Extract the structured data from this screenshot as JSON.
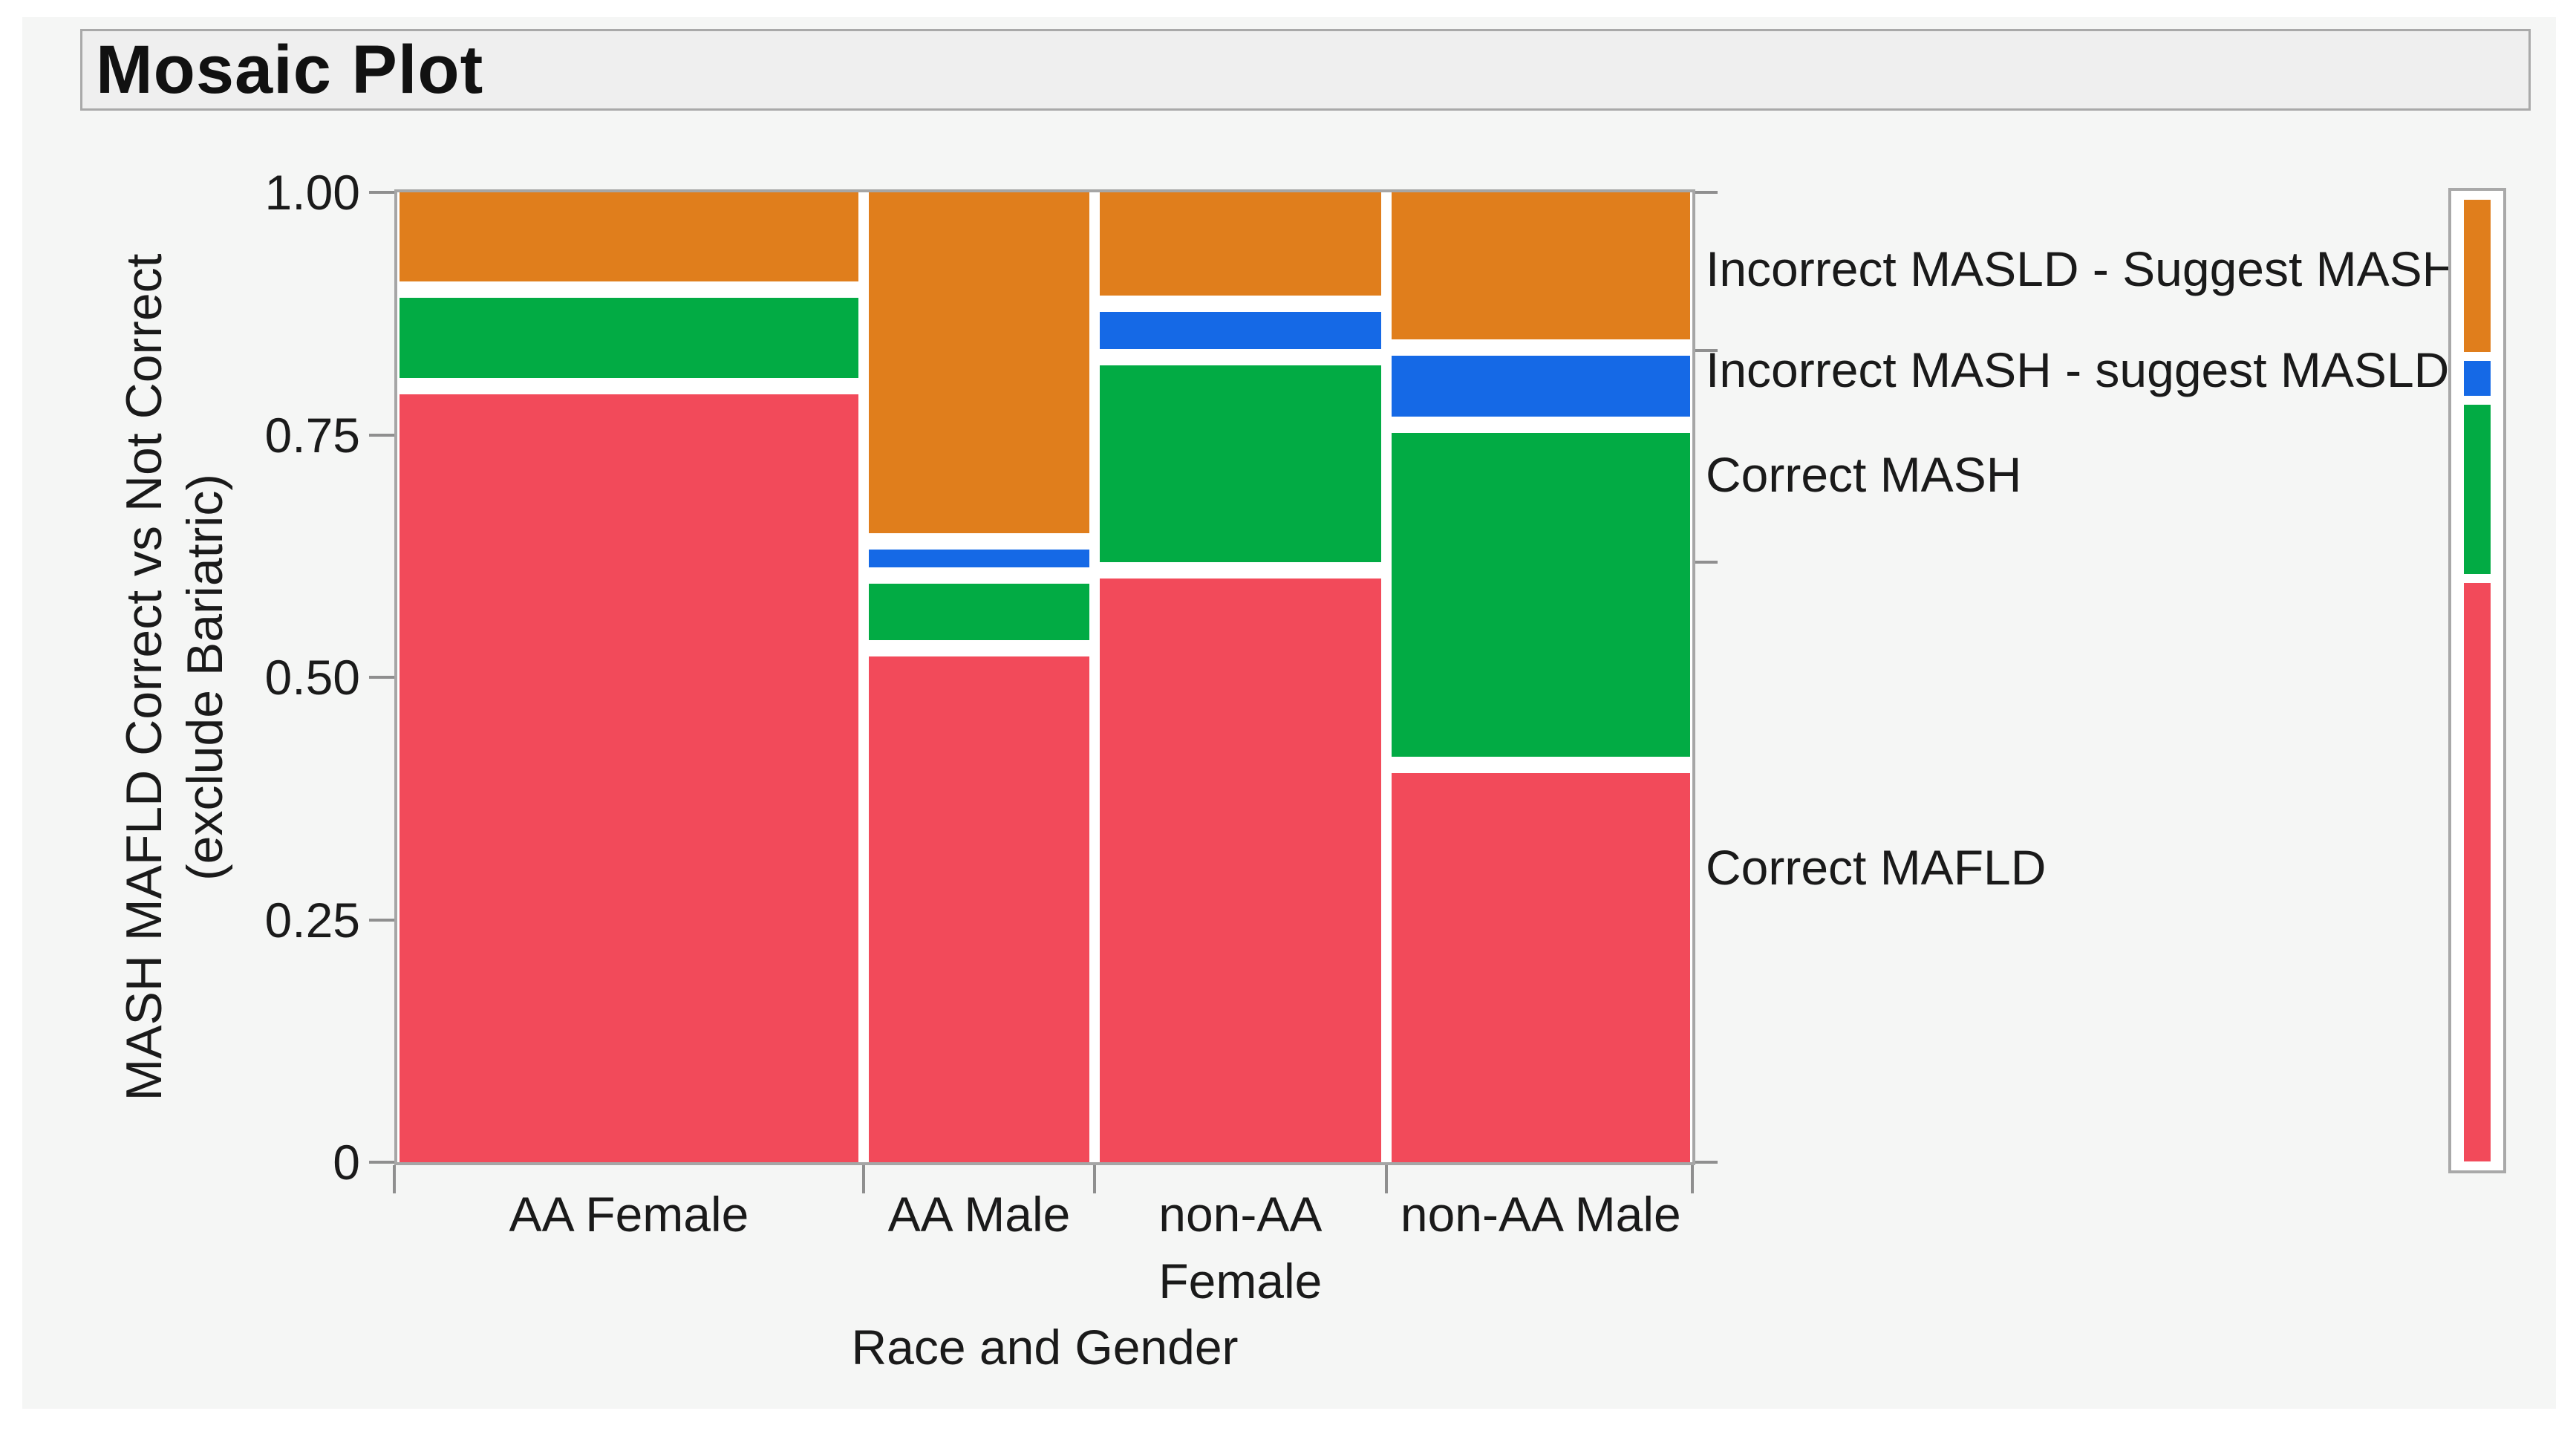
{
  "panel": {
    "title": "Mosaic Plot"
  },
  "y_axis": {
    "title_line1": "MASH MAFLD Correct vs Not Correct",
    "title_line2": "(exclude Bariatric)",
    "ticks": [
      {
        "label": "1.00",
        "value": 1.0
      },
      {
        "label": "0.75",
        "value": 0.75
      },
      {
        "label": "0.50",
        "value": 0.5
      },
      {
        "label": "0.25",
        "value": 0.25
      },
      {
        "label": "0",
        "value": 0.0
      }
    ]
  },
  "x_axis": {
    "title": "Race and Gender"
  },
  "legend": {
    "items": [
      {
        "text": "Incorrect MASLD - Suggest MASH",
        "y_value": 0.921
      },
      {
        "text": "Incorrect MASH - suggest MASLD",
        "y_value": 0.817
      },
      {
        "text": "Correct MASH",
        "y_value": 0.709
      },
      {
        "text": "Correct MAFLD",
        "y_value": 0.304
      }
    ]
  },
  "chart_data": {
    "type": "mosaic",
    "title": "Mosaic Plot",
    "xlabel": "Race and Gender",
    "ylabel": "MASH MAFLD Correct vs Not Correct (exclude Bariatric)",
    "ylim": [
      0,
      1
    ],
    "grid": "off",
    "legend_position": "right",
    "levels": [
      {
        "name": "Incorrect MASLD - Suggest MASH",
        "color": "#E07E1C"
      },
      {
        "name": "Incorrect MASH - suggest MASLD",
        "color": "#1569E6"
      },
      {
        "name": "Correct MASH",
        "color": "#02AB44"
      },
      {
        "name": "Correct MAFLD",
        "color": "#F24A5A"
      }
    ],
    "categories": [
      {
        "label_lines": [
          "AA Female"
        ],
        "width_frac": 0.364,
        "proportions": [
          0.1,
          0.0,
          0.1,
          0.8
        ]
      },
      {
        "label_lines": [
          "AA Male"
        ],
        "width_frac": 0.175,
        "proportions": [
          0.36,
          0.035,
          0.075,
          0.53
        ]
      },
      {
        "label_lines": [
          "non-AA",
          "Female"
        ],
        "width_frac": 0.223,
        "proportions": [
          0.115,
          0.055,
          0.22,
          0.61
        ]
      },
      {
        "label_lines": [
          "non-AA Male"
        ],
        "width_frac": 0.237,
        "proportions": [
          0.16,
          0.08,
          0.35,
          0.41
        ]
      }
    ],
    "overall_proportions": [
      0.163,
      0.037,
      0.181,
      0.619
    ],
    "right_axis_tick_values": [
      1.0,
      0.837,
      0.619,
      0.0
    ]
  }
}
